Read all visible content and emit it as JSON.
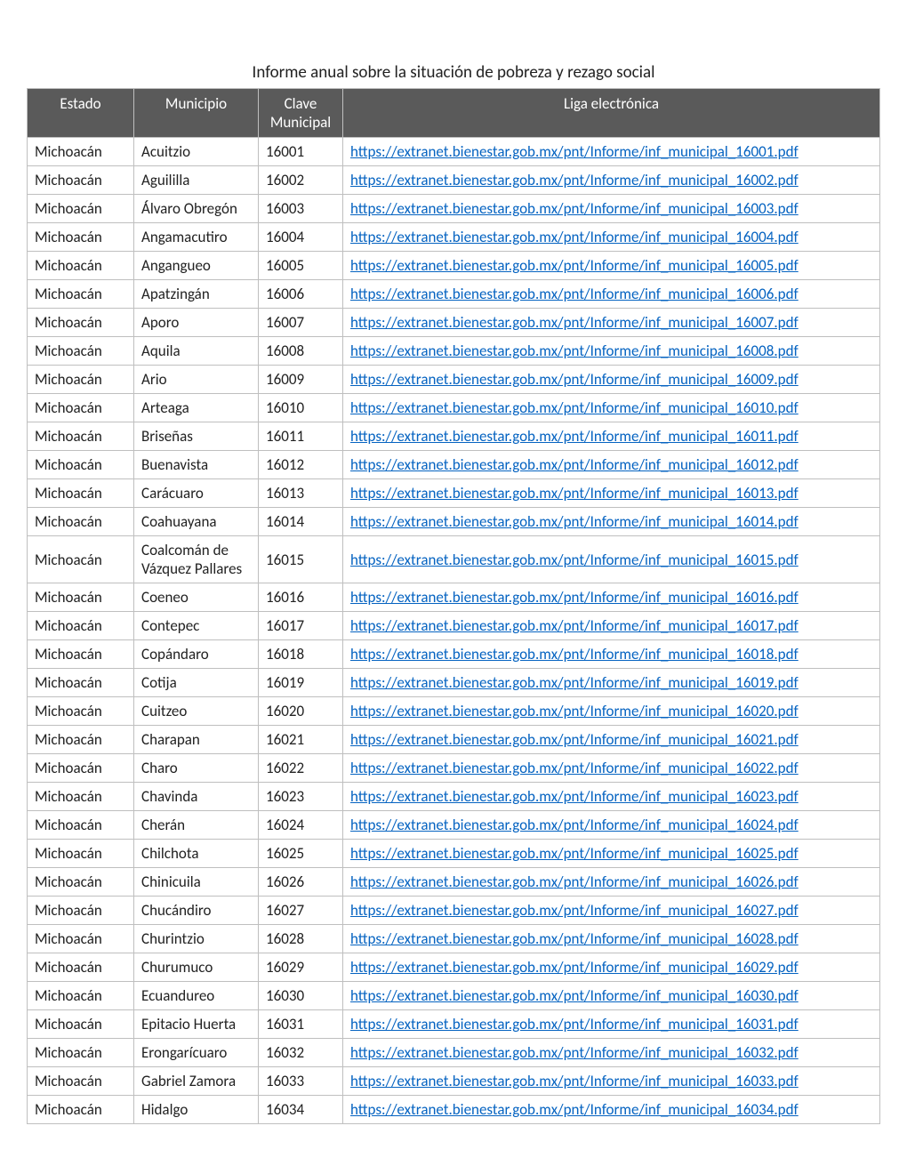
{
  "title": "Informe anual sobre la situación de pobreza y rezago social",
  "columns": {
    "estado": "Estado",
    "municipio": "Municipio",
    "clave": "Clave Municipal",
    "liga": "Liga electrónica"
  },
  "link_base": "https://extranet.bienestar.gob.mx/pnt/Informe/inf_municipal_",
  "link_suffix": ".pdf",
  "rows": [
    {
      "estado": "Michoacán",
      "municipio": "Acuitzio",
      "clave": "16001"
    },
    {
      "estado": "Michoacán",
      "municipio": "Aguililla",
      "clave": "16002"
    },
    {
      "estado": "Michoacán",
      "municipio": "Álvaro Obregón",
      "clave": "16003"
    },
    {
      "estado": "Michoacán",
      "municipio": "Angamacutiro",
      "clave": "16004"
    },
    {
      "estado": "Michoacán",
      "municipio": "Angangueo",
      "clave": "16005"
    },
    {
      "estado": "Michoacán",
      "municipio": "Apatzingán",
      "clave": "16006"
    },
    {
      "estado": "Michoacán",
      "municipio": "Aporo",
      "clave": "16007"
    },
    {
      "estado": "Michoacán",
      "municipio": "Aquila",
      "clave": "16008"
    },
    {
      "estado": "Michoacán",
      "municipio": "Ario",
      "clave": "16009"
    },
    {
      "estado": "Michoacán",
      "municipio": "Arteaga",
      "clave": "16010"
    },
    {
      "estado": "Michoacán",
      "municipio": "Briseñas",
      "clave": "16011"
    },
    {
      "estado": "Michoacán",
      "municipio": "Buenavista",
      "clave": "16012"
    },
    {
      "estado": "Michoacán",
      "municipio": "Carácuaro",
      "clave": "16013"
    },
    {
      "estado": "Michoacán",
      "municipio": "Coahuayana",
      "clave": "16014"
    },
    {
      "estado": "Michoacán",
      "municipio": "Coalcomán de Vázquez Pallares",
      "clave": "16015"
    },
    {
      "estado": "Michoacán",
      "municipio": "Coeneo",
      "clave": "16016"
    },
    {
      "estado": "Michoacán",
      "municipio": "Contepec",
      "clave": "16017"
    },
    {
      "estado": "Michoacán",
      "municipio": "Copándaro",
      "clave": "16018"
    },
    {
      "estado": "Michoacán",
      "municipio": "Cotija",
      "clave": "16019"
    },
    {
      "estado": "Michoacán",
      "municipio": "Cuitzeo",
      "clave": "16020"
    },
    {
      "estado": "Michoacán",
      "municipio": "Charapan",
      "clave": "16021"
    },
    {
      "estado": "Michoacán",
      "municipio": "Charo",
      "clave": "16022"
    },
    {
      "estado": "Michoacán",
      "municipio": "Chavinda",
      "clave": "16023"
    },
    {
      "estado": "Michoacán",
      "municipio": "Cherán",
      "clave": "16024"
    },
    {
      "estado": "Michoacán",
      "municipio": "Chilchota",
      "clave": "16025"
    },
    {
      "estado": "Michoacán",
      "municipio": "Chinicuila",
      "clave": "16026"
    },
    {
      "estado": "Michoacán",
      "municipio": "Chucándiro",
      "clave": "16027"
    },
    {
      "estado": "Michoacán",
      "municipio": "Churintzio",
      "clave": "16028"
    },
    {
      "estado": "Michoacán",
      "municipio": "Churumuco",
      "clave": "16029"
    },
    {
      "estado": "Michoacán",
      "municipio": "Ecuandureo",
      "clave": "16030"
    },
    {
      "estado": "Michoacán",
      "municipio": "Epitacio Huerta",
      "clave": "16031"
    },
    {
      "estado": "Michoacán",
      "municipio": "Erongarícuaro",
      "clave": "16032"
    },
    {
      "estado": "Michoacán",
      "municipio": "Gabriel Zamora",
      "clave": "16033"
    },
    {
      "estado": "Michoacán",
      "municipio": "Hidalgo",
      "clave": "16034"
    }
  ],
  "style": {
    "header_bg": "#5a5a5a",
    "header_fg": "#ffffff",
    "border_color": "#bfbfbf",
    "link_color": "#0563c1",
    "body_fg": "#222222",
    "font_size_pt": 12
  }
}
